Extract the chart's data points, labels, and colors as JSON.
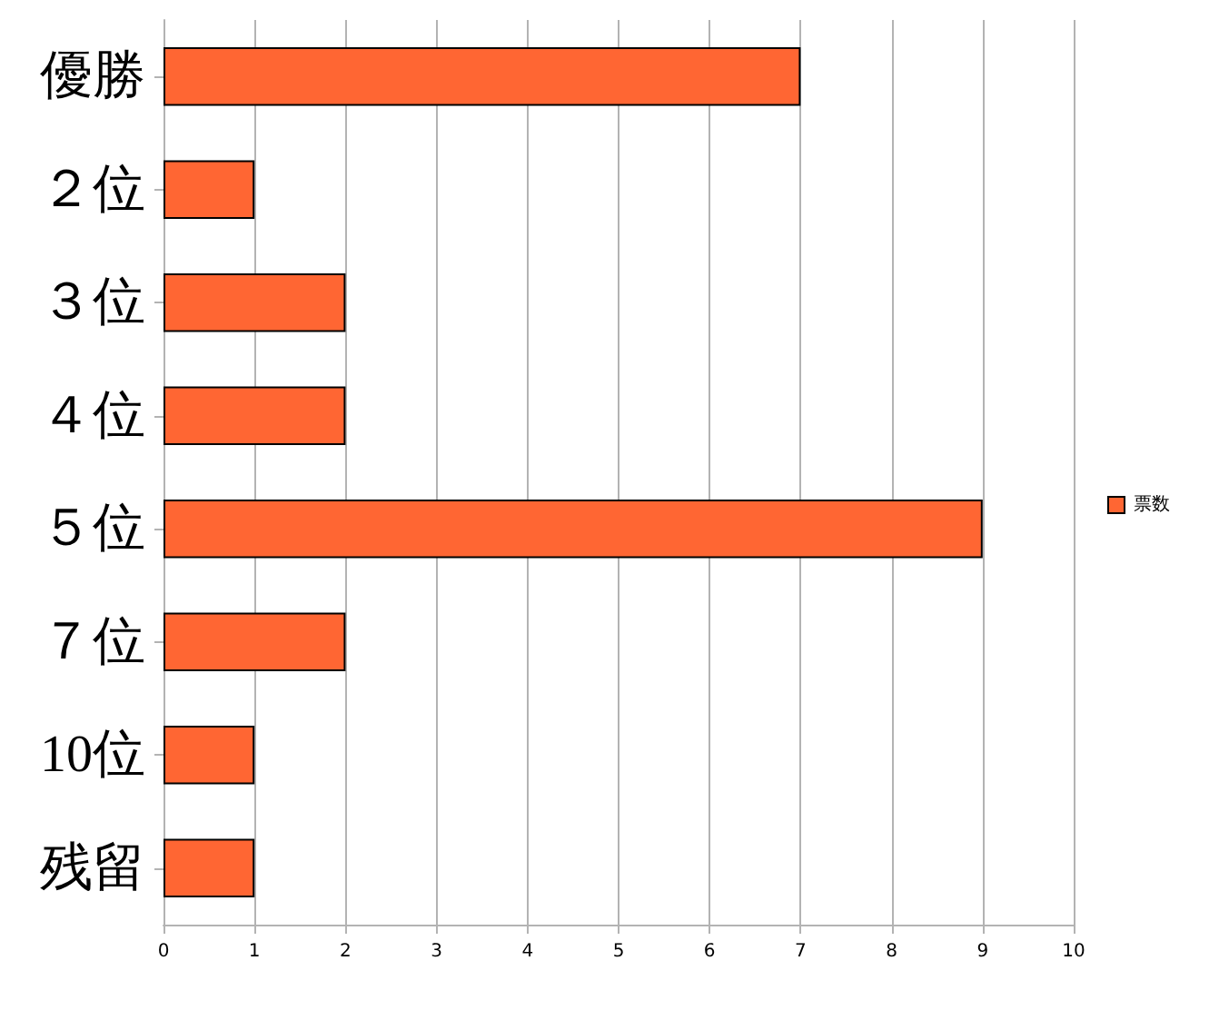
{
  "chart_data": {
    "type": "bar",
    "orientation": "horizontal",
    "categories": [
      "優勝",
      "２位",
      "３位",
      "４位",
      "５位",
      "７位",
      "10位",
      "残留"
    ],
    "series": [
      {
        "name": "票数",
        "color": "#ff6633",
        "values": [
          7,
          1,
          2,
          2,
          9,
          2,
          1,
          1
        ]
      }
    ],
    "xlim": [
      0,
      10
    ],
    "xticks": [
      0,
      1,
      2,
      3,
      4,
      5,
      6,
      7,
      8,
      9,
      10
    ],
    "grid": "x",
    "legend": "right"
  }
}
